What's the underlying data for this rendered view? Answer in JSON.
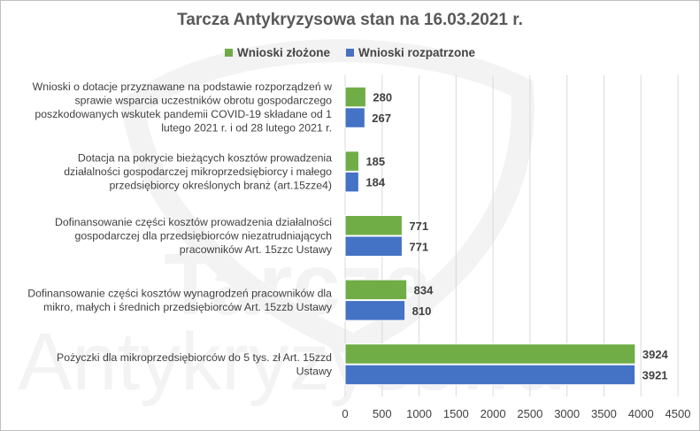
{
  "chart_data": {
    "type": "bar",
    "orientation": "horizontal",
    "title": "Tarcza Antykryzysowa  stan na 16.03.2021 r.",
    "categories": [
      [
        "Wnioski o dotacje przyznawane na podstawie rozporządzeń w",
        "sprawie wsparcia uczestników obrotu gospodarczego",
        "poszkodowanych wskutek pandemii COVID-19 składane od 1",
        "lutego 2021 r. i od 28 lutego 2021 r."
      ],
      [
        "Dotacja na pokrycie bieżących kosztów prowadzenia",
        "działalności gospodarczej mikroprzedsiębiorcy i małego",
        "przedsiębiorcy określonych branż (art.15zze4)"
      ],
      [
        "Dofinansowanie części kosztów prowadzenia działalności",
        "gospodarczej dla przedsiębiorców niezatrudniających",
        "pracowników Art. 15zzc Ustawy"
      ],
      [
        "Dofinansowanie części kosztów wynagrodzeń pracowników dla",
        "mikro, małych i średnich przedsiębiorców Art. 15zzb Ustawy"
      ],
      [
        "Pożyczki dla mikroprzedsiębiorców do 5 tys. zł Art. 15zzd",
        "Ustawy"
      ]
    ],
    "series": [
      {
        "name": "Wnioski złożone",
        "color": "#70ad47",
        "values": [
          280,
          185,
          771,
          834,
          3924
        ]
      },
      {
        "name": "Wnioski rozpatrzone",
        "color": "#4472c4",
        "values": [
          267,
          184,
          771,
          810,
          3921
        ]
      }
    ],
    "xlim": [
      0,
      4500
    ],
    "xticks": [
      "0",
      "500",
      "1000",
      "1500",
      "2000",
      "2500",
      "3000",
      "3500",
      "4000",
      "4500"
    ],
    "grid": true,
    "legend_position": "top",
    "watermark": "Tarcza Antykryzysowa"
  }
}
